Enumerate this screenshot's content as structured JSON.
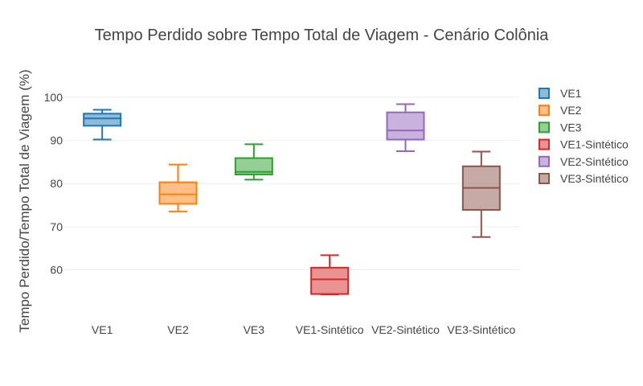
{
  "chart_data": {
    "type": "box",
    "title": "Tempo Perdido sobre Tempo Total de Viagem - Cenário Colônia",
    "xlabel": "",
    "ylabel": "Tempo Perdido/Tempo Total de Viagem (%)",
    "ylim": [
      50.6,
      108
    ],
    "yticks": [
      60,
      70,
      80,
      90,
      100
    ],
    "grid": true,
    "legend_position": "right",
    "categories": [
      "VE1",
      "VE2",
      "VE3",
      "VE1-Sintético",
      "VE2-Sintético",
      "VE3-Sintético"
    ],
    "series": [
      {
        "name": "VE1",
        "color": "#1f77b4",
        "fill": "rgba(31,119,180,0.5)",
        "min": 90.2,
        "q1": 93.4,
        "median": 95.1,
        "q3": 96.2,
        "max": 97.1
      },
      {
        "name": "VE2",
        "color": "#ff7f0e",
        "fill": "rgba(255,127,14,0.5)",
        "min": 73.5,
        "q1": 75.3,
        "median": 77.5,
        "q3": 80.3,
        "max": 84.4
      },
      {
        "name": "VE3",
        "color": "#2ca02c",
        "fill": "rgba(44,160,44,0.5)",
        "min": 80.9,
        "q1": 82.1,
        "median": 82.7,
        "q3": 85.9,
        "max": 89.1
      },
      {
        "name": "VE1-Sintético",
        "color": "#d62728",
        "fill": "rgba(214,39,40,0.5)",
        "min": 54.3,
        "q1": 54.4,
        "median": 57.8,
        "q3": 60.5,
        "max": 63.4
      },
      {
        "name": "VE2-Sintético",
        "color": "#9467bd",
        "fill": "rgba(148,103,189,0.5)",
        "min": 87.5,
        "q1": 90.2,
        "median": 92.3,
        "q3": 96.5,
        "max": 98.4
      },
      {
        "name": "VE3-Sintético",
        "color": "#8c564b",
        "fill": "rgba(140,86,75,0.5)",
        "min": 67.6,
        "q1": 73.9,
        "median": 79.0,
        "q3": 84.0,
        "max": 87.4
      }
    ]
  }
}
